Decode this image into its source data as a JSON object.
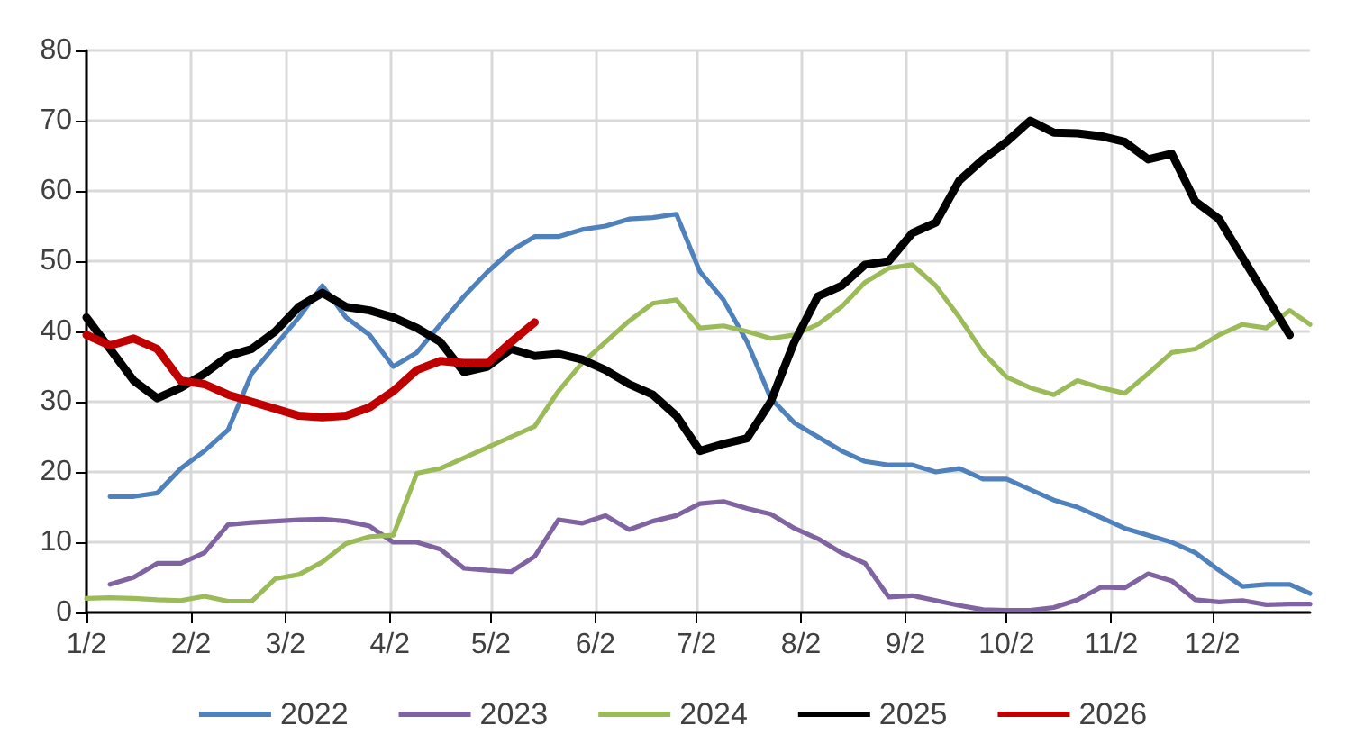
{
  "chart_data": {
    "type": "line",
    "x": [
      "--01-02",
      "--01-09",
      "--01-16",
      "--01-23",
      "--01-30",
      "--02-06",
      "--02-13",
      "--02-20",
      "--02-27",
      "--03-06",
      "--03-13",
      "--03-20",
      "--03-27",
      "--04-03",
      "--04-10",
      "--04-17",
      "--04-24",
      "--05-01",
      "--05-08",
      "--05-15",
      "--05-22",
      "--05-29",
      "--06-05",
      "--06-12",
      "--06-19",
      "--06-26",
      "--07-03",
      "--07-10",
      "--07-17",
      "--07-24",
      "--07-31",
      "--08-07",
      "--08-14",
      "--08-21",
      "--08-28",
      "--09-04",
      "--09-11",
      "--09-18",
      "--09-25",
      "--10-02",
      "--10-09",
      "--10-16",
      "--10-23",
      "--10-30",
      "--11-06",
      "--11-13",
      "--11-20",
      "--11-27",
      "--12-04",
      "--12-11",
      "--12-18",
      "--12-25",
      "--12-31"
    ],
    "series": [
      {
        "name": "2022",
        "color": "#4f81bd",
        "values": [
          null,
          16.5,
          16.5,
          17,
          20.5,
          23,
          26,
          34,
          38,
          42,
          46.5,
          42,
          39.5,
          35,
          37,
          41,
          45,
          48.5,
          51.5,
          53.5,
          53.5,
          54.5,
          55,
          56,
          56.2,
          56.7,
          48.5,
          44.5,
          38.5,
          30.5,
          27,
          25,
          23,
          21.5,
          21,
          21,
          20,
          20.5,
          19,
          19,
          17.5,
          16,
          15,
          13.5,
          12,
          11,
          10,
          8.5,
          6,
          3.7,
          4,
          4,
          2.7
        ]
      },
      {
        "name": "2023",
        "color": "#8064a2",
        "values": [
          null,
          4,
          5,
          7,
          7,
          8.5,
          12.5,
          12.8,
          13,
          13.2,
          13.3,
          13,
          12.3,
          10,
          10,
          9,
          6.3,
          6,
          5.8,
          8,
          13.2,
          12.7,
          13.8,
          11.8,
          13,
          13.8,
          15.5,
          15.8,
          14.8,
          14,
          12,
          10.5,
          8.5,
          7,
          2.2,
          2.4,
          1.7,
          1,
          0.4,
          0.3,
          0.3,
          0.7,
          1.8,
          3.6,
          3.5,
          5.5,
          4.5,
          1.8,
          1.5,
          1.7,
          1.1,
          1.2,
          1.2
        ]
      },
      {
        "name": "2024",
        "color": "#9bbb59",
        "values": [
          2,
          2.1,
          2,
          1.8,
          1.7,
          2.3,
          1.6,
          1.6,
          4.8,
          5.4,
          7.2,
          9.8,
          10.8,
          11,
          19.8,
          20.5,
          22,
          23.5,
          25,
          26.5,
          31.5,
          35.5,
          38.5,
          41.5,
          44,
          44.5,
          40.5,
          40.8,
          40,
          39,
          39.5,
          41,
          43.5,
          47,
          49,
          49.5,
          46.5,
          42,
          37,
          33.5,
          32,
          31,
          33,
          32,
          31.2,
          34,
          37,
          37.5,
          39.5,
          41,
          40.5,
          43,
          41
        ]
      },
      {
        "name": "2025",
        "color": "#000000",
        "values": [
          42,
          37.5,
          33,
          30.5,
          32,
          34,
          36.5,
          37.5,
          40,
          43.5,
          45.5,
          43.5,
          43,
          42,
          40.5,
          38.5,
          34.2,
          35,
          37.5,
          36.5,
          36.8,
          36,
          34.5,
          32.5,
          31,
          28,
          23,
          24,
          24.8,
          30,
          38.5,
          45,
          46.5,
          49.5,
          50,
          54,
          55.5,
          61.5,
          64.5,
          67,
          70,
          68.3,
          68.2,
          67.8,
          67,
          64.5,
          65.3,
          58.5,
          56,
          50.5,
          45,
          39.5,
          null
        ]
      },
      {
        "name": "2026",
        "color": "#c00000",
        "values": [
          39.5,
          38,
          39,
          37.5,
          33,
          32.5,
          31,
          30,
          29,
          28,
          27.8,
          28,
          29.2,
          31.5,
          34.5,
          35.8,
          35.5,
          35.5,
          38.5,
          41.3,
          null,
          null,
          null,
          null,
          null,
          null,
          null,
          null,
          null,
          null,
          null,
          null,
          null,
          null,
          null,
          null,
          null,
          null,
          null,
          null,
          null,
          null,
          null,
          null,
          null,
          null,
          null,
          null,
          null,
          null,
          null,
          null,
          null
        ]
      }
    ],
    "xlim": [
      "--01-02",
      "--12-31"
    ],
    "xticks": [
      {
        "value": "--01-02",
        "label": "1/2"
      },
      {
        "value": "--02-02",
        "label": "2/2"
      },
      {
        "value": "--03-02",
        "label": "3/2"
      },
      {
        "value": "--04-02",
        "label": "4/2"
      },
      {
        "value": "--05-02",
        "label": "5/2"
      },
      {
        "value": "--06-02",
        "label": "6/2"
      },
      {
        "value": "--07-02",
        "label": "7/2"
      },
      {
        "value": "--08-02",
        "label": "8/2"
      },
      {
        "value": "--09-02",
        "label": "9/2"
      },
      {
        "value": "--10-02",
        "label": "10/2"
      },
      {
        "value": "--11-02",
        "label": "11/2"
      },
      {
        "value": "--12-02",
        "label": "12/2"
      }
    ],
    "ylim": [
      0,
      80
    ],
    "yticks": [
      0,
      10,
      20,
      30,
      40,
      50,
      60,
      70,
      80
    ],
    "grid": true,
    "legend": "bottom",
    "marker": "none",
    "line_style": "solid"
  }
}
